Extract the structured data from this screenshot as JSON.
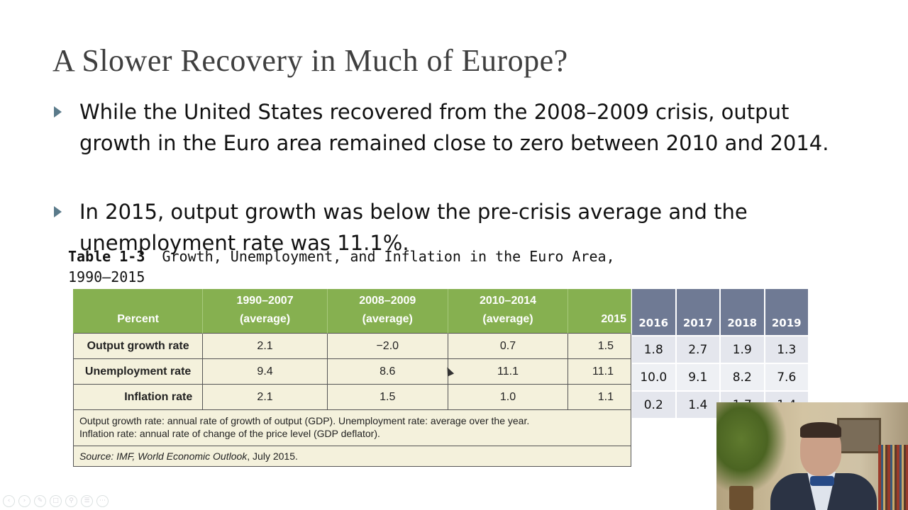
{
  "slide": {
    "title": "A Slower Recovery in Much of Europe?",
    "bullets": [
      "While the United States recovered from the 2008–2009 crisis, output growth in the Euro area remained close to zero between 2010 and 2014.",
      "In 2015, output growth was below the pre-crisis average and the unemployment rate was 11.1%."
    ]
  },
  "table_caption": {
    "label": "Table 1-3",
    "text": "Growth, Unemployment, and Inflation in the Euro Area, 1990–2015"
  },
  "main_table": {
    "headers": [
      "Percent",
      "1990–2007\n(average)",
      "2008–2009\n(average)",
      "2010–2014\n(average)",
      "2015"
    ],
    "header_lines": [
      [
        "Percent"
      ],
      [
        "1990–2007",
        "(average)"
      ],
      [
        "2008–2009",
        "(average)"
      ],
      [
        "2010–2014",
        "(average)"
      ],
      [
        "2015"
      ]
    ],
    "rows": [
      {
        "label": "Output growth rate",
        "values": [
          "2.1",
          "−2.0",
          "0.7",
          "1.5"
        ]
      },
      {
        "label": "Unemployment rate",
        "values": [
          "9.4",
          "8.6",
          "11.1",
          "11.1"
        ]
      },
      {
        "label": "Inflation rate",
        "values": [
          "2.1",
          "1.5",
          "1.0",
          "1.1"
        ]
      }
    ],
    "note_line1": "Output growth rate: annual rate of growth of output (GDP). Unemployment rate: average over the year.",
    "note_line2": "Inflation rate: annual rate of change of the price level (GDP deflator).",
    "source_prefix": "Source: IMF, ",
    "source_italic": "World Economic Outlook",
    "source_suffix": ", July 2015."
  },
  "extra_table": {
    "headers": [
      "2016",
      "2017",
      "2018",
      "2019"
    ],
    "rows": [
      [
        "1.8",
        "2.7",
        "1.9",
        "1.3"
      ],
      [
        "10.0",
        "9.1",
        "8.2",
        "7.6"
      ],
      [
        "0.2",
        "1.4",
        "1.7",
        "1.4"
      ]
    ]
  },
  "colors": {
    "table_header_green": "#86b050",
    "table_body_cream": "#f4f1dc",
    "extra_header_slate": "#6f7a94",
    "title_gray": "#3f3f3f",
    "bullet_arrow": "#5a7a8a"
  },
  "toolbar_icons": [
    "prev-icon",
    "next-icon",
    "pen-icon",
    "copy-icon",
    "zoom-icon",
    "menu-icon",
    "more-icon"
  ]
}
